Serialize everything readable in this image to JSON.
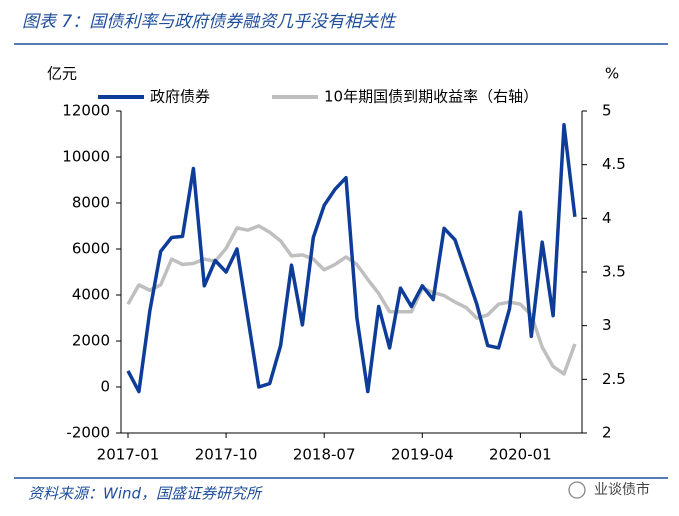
{
  "chart_data": {
    "type": "line",
    "title": "图表 7：国债利率与政府债券融资几乎没有相关性",
    "source": "资料来源：Wind，国盛证券研究所",
    "watermark": "业谈债市",
    "y_label": "亿元",
    "y2_label": "%",
    "categories": [
      "2017-01",
      null,
      null,
      null,
      null,
      null,
      null,
      null,
      null,
      "2017-10",
      null,
      null,
      null,
      null,
      null,
      null,
      null,
      null,
      "2018-07",
      null,
      null,
      null,
      null,
      null,
      null,
      null,
      null,
      "2019-04",
      null,
      null,
      null,
      null,
      null,
      null,
      null,
      null,
      "2020-01",
      null,
      null,
      null,
      null,
      null
    ],
    "series": [
      {
        "name": "政府债券",
        "color": "#0e3d99",
        "values": [
          700,
          -200,
          3300,
          5900,
          6500,
          6550,
          9500,
          4400,
          5500,
          5000,
          6000,
          3000,
          0,
          150,
          1800,
          5300,
          2700,
          6500,
          7900,
          8600,
          9100,
          3000,
          -200,
          3500,
          1700,
          4300,
          3500,
          4400,
          3800,
          6900,
          6400,
          5000,
          3600,
          1800,
          1700,
          3400,
          7600,
          2200,
          6300,
          3100,
          11400,
          7400
        ]
      },
      {
        "name": "10年期国债到期收益率（右轴）",
        "color": "#bfbfbf",
        "axis": "y2",
        "values": [
          3.2,
          3.38,
          3.33,
          3.38,
          3.62,
          3.57,
          3.58,
          3.62,
          3.6,
          3.72,
          3.91,
          3.89,
          3.93,
          3.87,
          3.79,
          3.65,
          3.66,
          3.62,
          3.52,
          3.57,
          3.64,
          3.57,
          3.43,
          3.3,
          3.13,
          3.13,
          3.13,
          3.35,
          3.31,
          3.28,
          3.22,
          3.17,
          3.07,
          3.1,
          3.2,
          3.22,
          3.2,
          3.1,
          2.8,
          2.62,
          2.55,
          2.83
        ]
      }
    ],
    "ylim": [
      -2000,
      12000
    ],
    "yticks": [
      -2000,
      0,
      2000,
      4000,
      6000,
      8000,
      10000,
      12000
    ],
    "y2lim": [
      2,
      5
    ],
    "y2ticks": [
      2,
      2.5,
      3,
      3.5,
      4,
      4.5,
      5
    ],
    "legend": "top"
  }
}
